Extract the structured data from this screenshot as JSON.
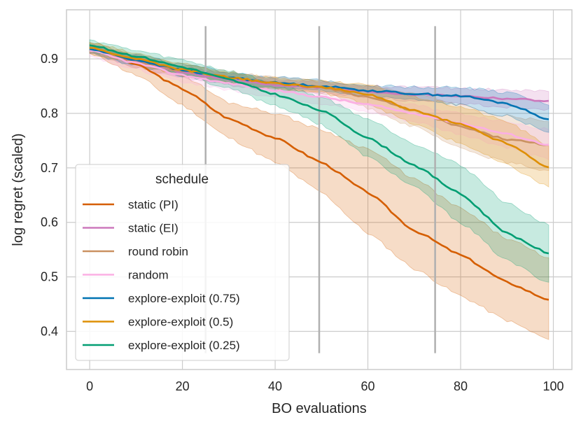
{
  "chart_data": {
    "type": "line",
    "title": "",
    "xlabel": "BO evaluations",
    "ylabel": "log regret (scaled)",
    "xlim": [
      -5,
      104
    ],
    "ylim": [
      0.33,
      0.99
    ],
    "xticks": [
      0,
      20,
      40,
      60,
      80,
      100
    ],
    "yticks": [
      0.4,
      0.5,
      0.6,
      0.7,
      0.8,
      0.9
    ],
    "xtick_labels": [
      "0",
      "20",
      "40",
      "60",
      "80",
      "100"
    ],
    "ytick_labels": [
      "0.4",
      "0.5",
      "0.6",
      "0.7",
      "0.8",
      "0.9"
    ],
    "grid": true,
    "vertical_markers": [
      {
        "x": 25,
        "y_range": [
          0.36,
          0.96
        ]
      },
      {
        "x": 49.5,
        "y_range": [
          0.36,
          0.96
        ]
      },
      {
        "x": 74.5,
        "y_range": [
          0.36,
          0.96
        ]
      }
    ],
    "legend": {
      "title": "schedule",
      "placement": "lower-left"
    },
    "series": [
      {
        "name": "static (PI)",
        "color": "#d55e00",
        "x": [
          0,
          10,
          20,
          30,
          40,
          50,
          60,
          70,
          80,
          90,
          99
        ],
        "values": [
          0.92,
          0.89,
          0.845,
          0.79,
          0.755,
          0.71,
          0.655,
          0.585,
          0.54,
          0.49,
          0.458
        ],
        "lower": [
          0.912,
          0.87,
          0.815,
          0.755,
          0.71,
          0.655,
          0.58,
          0.515,
          0.465,
          0.42,
          0.385
        ],
        "upper": [
          0.93,
          0.905,
          0.87,
          0.82,
          0.8,
          0.77,
          0.735,
          0.68,
          0.625,
          0.57,
          0.535
        ]
      },
      {
        "name": "static (EI)",
        "color": "#cc78bc",
        "x": [
          0,
          10,
          20,
          30,
          40,
          50,
          60,
          70,
          80,
          90,
          99
        ],
        "values": [
          0.918,
          0.895,
          0.875,
          0.862,
          0.852,
          0.847,
          0.84,
          0.835,
          0.832,
          0.827,
          0.823
        ],
        "lower": [
          0.91,
          0.885,
          0.865,
          0.852,
          0.842,
          0.837,
          0.83,
          0.822,
          0.818,
          0.812,
          0.808
        ],
        "upper": [
          0.926,
          0.905,
          0.885,
          0.872,
          0.862,
          0.857,
          0.85,
          0.848,
          0.846,
          0.843,
          0.84
        ]
      },
      {
        "name": "round robin",
        "color": "#ca9161",
        "x": [
          0,
          10,
          20,
          30,
          40,
          50,
          60,
          70,
          80,
          90,
          99
        ],
        "values": [
          0.918,
          0.895,
          0.878,
          0.866,
          0.856,
          0.848,
          0.83,
          0.805,
          0.775,
          0.752,
          0.742
        ],
        "lower": [
          0.91,
          0.885,
          0.868,
          0.856,
          0.846,
          0.838,
          0.81,
          0.775,
          0.735,
          0.71,
          0.695
        ],
        "upper": [
          0.926,
          0.905,
          0.888,
          0.876,
          0.866,
          0.858,
          0.85,
          0.835,
          0.815,
          0.795,
          0.785
        ]
      },
      {
        "name": "random",
        "color": "#fbafe4",
        "x": [
          0,
          10,
          20,
          30,
          40,
          50,
          60,
          70,
          80,
          90,
          99
        ],
        "values": [
          0.915,
          0.892,
          0.87,
          0.855,
          0.842,
          0.83,
          0.816,
          0.8,
          0.782,
          0.762,
          0.742
        ],
        "lower": [
          0.905,
          0.88,
          0.858,
          0.843,
          0.83,
          0.818,
          0.802,
          0.785,
          0.762,
          0.738,
          0.715
        ],
        "upper": [
          0.925,
          0.904,
          0.882,
          0.867,
          0.854,
          0.842,
          0.83,
          0.815,
          0.8,
          0.785,
          0.77
        ]
      },
      {
        "name": "explore-exploit (0.75)",
        "color": "#0173b2",
        "x": [
          0,
          10,
          20,
          30,
          40,
          50,
          60,
          70,
          80,
          90,
          99
        ],
        "values": [
          0.918,
          0.898,
          0.879,
          0.866,
          0.856,
          0.85,
          0.842,
          0.836,
          0.832,
          0.818,
          0.789
        ],
        "lower": [
          0.91,
          0.888,
          0.869,
          0.856,
          0.846,
          0.84,
          0.832,
          0.824,
          0.815,
          0.795,
          0.765
        ],
        "upper": [
          0.926,
          0.908,
          0.889,
          0.876,
          0.866,
          0.86,
          0.852,
          0.848,
          0.848,
          0.838,
          0.815
        ]
      },
      {
        "name": "explore-exploit (0.5)",
        "color": "#de8f05",
        "x": [
          0,
          10,
          20,
          30,
          40,
          50,
          60,
          70,
          80,
          90,
          99
        ],
        "values": [
          0.92,
          0.9,
          0.88,
          0.866,
          0.855,
          0.848,
          0.835,
          0.805,
          0.78,
          0.745,
          0.701
        ],
        "lower": [
          0.91,
          0.89,
          0.87,
          0.856,
          0.845,
          0.838,
          0.818,
          0.78,
          0.745,
          0.705,
          0.665
        ],
        "upper": [
          0.93,
          0.91,
          0.89,
          0.876,
          0.865,
          0.858,
          0.852,
          0.83,
          0.812,
          0.785,
          0.74
        ]
      },
      {
        "name": "explore-exploit (0.25)",
        "color": "#029e73",
        "x": [
          0,
          10,
          20,
          30,
          40,
          50,
          60,
          70,
          80,
          90,
          99
        ],
        "values": [
          0.925,
          0.905,
          0.885,
          0.862,
          0.835,
          0.805,
          0.755,
          0.705,
          0.652,
          0.58,
          0.543
        ],
        "lower": [
          0.915,
          0.895,
          0.872,
          0.845,
          0.815,
          0.78,
          0.72,
          0.665,
          0.6,
          0.53,
          0.49
        ],
        "upper": [
          0.935,
          0.915,
          0.898,
          0.878,
          0.855,
          0.83,
          0.79,
          0.745,
          0.705,
          0.635,
          0.595
        ]
      }
    ]
  }
}
